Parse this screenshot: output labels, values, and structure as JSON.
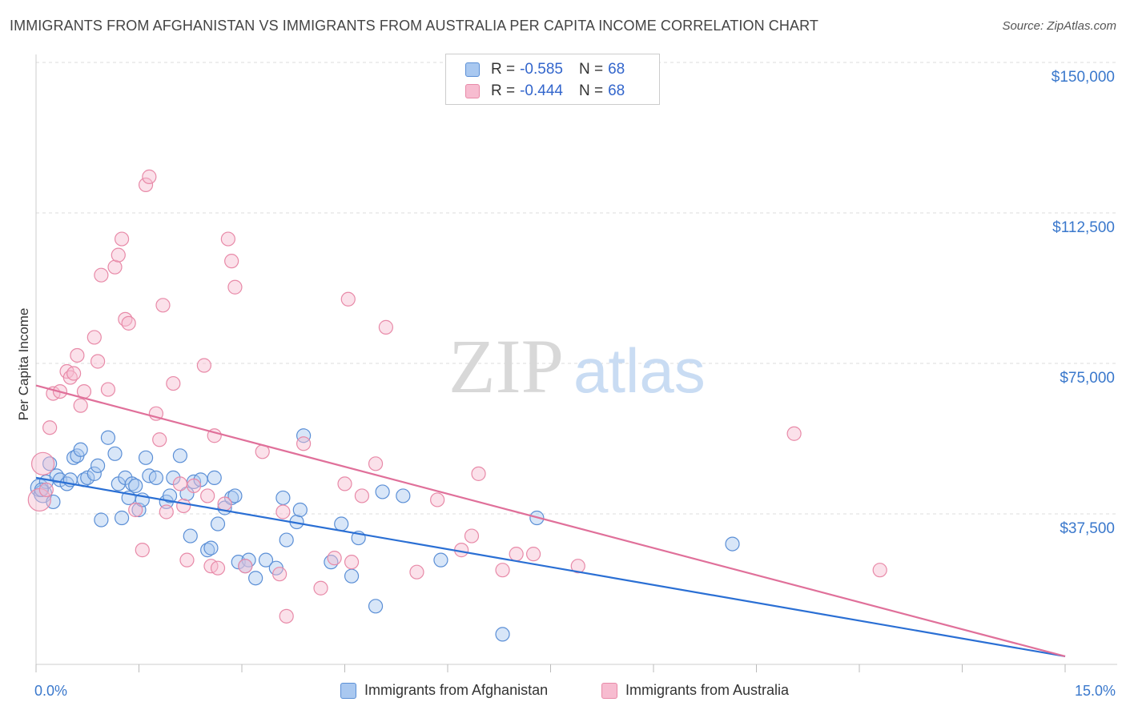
{
  "title": "IMMIGRANTS FROM AFGHANISTAN VS IMMIGRANTS FROM AUSTRALIA PER CAPITA INCOME CORRELATION CHART",
  "source": "Source: ZipAtlas.com",
  "watermark": {
    "zip": "ZIP",
    "atlas": "atlas"
  },
  "legend": {
    "rows": [
      {
        "r_label": "R =",
        "r_value": "-0.585",
        "n_label": "N =",
        "n_value": "68"
      },
      {
        "r_label": "R =",
        "r_value": "-0.444",
        "n_label": "N =",
        "n_value": "68"
      }
    ]
  },
  "bottom_legend": {
    "afghanistan": "Immigrants from Afghanistan",
    "australia": "Immigrants from Australia"
  },
  "colors": {
    "afghanistan_fill": "#a9c8f0",
    "afghanistan_stroke": "#5b8fd6",
    "afghanistan_line": "#2a6fd4",
    "australia_fill": "#f7bcd0",
    "australia_stroke": "#e88aa8",
    "australia_line": "#e0709a",
    "tick_label": "#3a78cc",
    "grid": "#dddddd"
  },
  "chart_data": {
    "type": "scatter",
    "xlabel": "",
    "ylabel": "Per Capita Income",
    "xlim": [
      0,
      15
    ],
    "ylim": [
      0,
      150000
    ],
    "x_tick_labels": [
      "0.0%",
      "15.0%"
    ],
    "y_ticks": [
      37500,
      75000,
      112500,
      150000
    ],
    "y_tick_labels": [
      "$37,500",
      "$75,000",
      "$112,500",
      "$150,000"
    ],
    "grid": true,
    "series": [
      {
        "name": "Immigrants from Afghanistan",
        "trend": {
          "x": [
            0,
            15
          ],
          "y": [
            46500,
            2000
          ]
        },
        "points": [
          [
            0.05,
            44000
          ],
          [
            0.1,
            42500
          ],
          [
            0.15,
            45500
          ],
          [
            0.2,
            50000
          ],
          [
            0.25,
            40500
          ],
          [
            0.3,
            47000
          ],
          [
            0.35,
            46000
          ],
          [
            0.45,
            45000
          ],
          [
            0.5,
            46000
          ],
          [
            0.55,
            51500
          ],
          [
            0.6,
            52000
          ],
          [
            0.65,
            53500
          ],
          [
            0.7,
            46000
          ],
          [
            0.75,
            46500
          ],
          [
            0.85,
            47500
          ],
          [
            0.9,
            49500
          ],
          [
            0.95,
            36000
          ],
          [
            1.05,
            56500
          ],
          [
            1.15,
            52500
          ],
          [
            1.2,
            45000
          ],
          [
            1.25,
            36500
          ],
          [
            1.3,
            46500
          ],
          [
            1.35,
            41500
          ],
          [
            1.4,
            45000
          ],
          [
            1.45,
            44500
          ],
          [
            1.5,
            38500
          ],
          [
            1.55,
            41000
          ],
          [
            1.6,
            51500
          ],
          [
            1.65,
            47000
          ],
          [
            1.75,
            46500
          ],
          [
            1.9,
            40500
          ],
          [
            1.95,
            42000
          ],
          [
            2.1,
            52000
          ],
          [
            2.2,
            42500
          ],
          [
            2.25,
            32000
          ],
          [
            2.3,
            45500
          ],
          [
            2.4,
            46000
          ],
          [
            2.5,
            28500
          ],
          [
            2.55,
            29000
          ],
          [
            2.6,
            46500
          ],
          [
            2.65,
            35000
          ],
          [
            2.75,
            39000
          ],
          [
            2.85,
            41500
          ],
          [
            2.9,
            42000
          ],
          [
            2.95,
            25500
          ],
          [
            3.1,
            26000
          ],
          [
            3.05,
            24500
          ],
          [
            3.2,
            21500
          ],
          [
            3.35,
            26000
          ],
          [
            3.5,
            24000
          ],
          [
            3.6,
            41500
          ],
          [
            3.65,
            31000
          ],
          [
            3.8,
            35500
          ],
          [
            3.85,
            38500
          ],
          [
            3.9,
            57000
          ],
          [
            4.3,
            25500
          ],
          [
            4.45,
            35000
          ],
          [
            4.6,
            22000
          ],
          [
            4.7,
            31500
          ],
          [
            4.95,
            14500
          ],
          [
            5.05,
            43000
          ],
          [
            5.35,
            42000
          ],
          [
            5.9,
            26000
          ],
          [
            6.8,
            7500
          ],
          [
            7.3,
            36500
          ],
          [
            10.15,
            30000
          ],
          [
            0.08,
            43500
          ],
          [
            2.0,
            46500
          ]
        ]
      },
      {
        "name": "Immigrants from Australia",
        "trend": {
          "x": [
            0,
            15
          ],
          "y": [
            69500,
            2000
          ]
        },
        "points": [
          [
            0.05,
            41000
          ],
          [
            0.1,
            50000
          ],
          [
            0.15,
            43500
          ],
          [
            0.2,
            59000
          ],
          [
            0.25,
            67500
          ],
          [
            0.35,
            68000
          ],
          [
            0.45,
            73000
          ],
          [
            0.5,
            71500
          ],
          [
            0.55,
            72500
          ],
          [
            0.6,
            77000
          ],
          [
            0.65,
            64500
          ],
          [
            0.7,
            68000
          ],
          [
            0.85,
            81500
          ],
          [
            0.9,
            75500
          ],
          [
            0.95,
            97000
          ],
          [
            1.05,
            68500
          ],
          [
            1.15,
            99000
          ],
          [
            1.2,
            102000
          ],
          [
            1.25,
            106000
          ],
          [
            1.3,
            86000
          ],
          [
            1.35,
            85000
          ],
          [
            1.45,
            38500
          ],
          [
            1.55,
            28500
          ],
          [
            1.6,
            119500
          ],
          [
            1.65,
            121500
          ],
          [
            1.75,
            62500
          ],
          [
            1.8,
            56000
          ],
          [
            1.85,
            89500
          ],
          [
            1.9,
            38000
          ],
          [
            2.0,
            70000
          ],
          [
            2.1,
            45000
          ],
          [
            2.15,
            39500
          ],
          [
            2.2,
            26000
          ],
          [
            2.3,
            44500
          ],
          [
            2.45,
            74500
          ],
          [
            2.5,
            42000
          ],
          [
            2.55,
            24500
          ],
          [
            2.6,
            57000
          ],
          [
            2.65,
            24000
          ],
          [
            2.75,
            40000
          ],
          [
            2.8,
            106000
          ],
          [
            2.85,
            100500
          ],
          [
            2.9,
            94000
          ],
          [
            3.05,
            24500
          ],
          [
            3.3,
            53000
          ],
          [
            3.55,
            22500
          ],
          [
            3.6,
            38000
          ],
          [
            3.65,
            12000
          ],
          [
            3.9,
            55000
          ],
          [
            4.15,
            19000
          ],
          [
            4.35,
            26500
          ],
          [
            4.5,
            45000
          ],
          [
            4.55,
            91000
          ],
          [
            4.6,
            25500
          ],
          [
            4.75,
            42000
          ],
          [
            4.95,
            50000
          ],
          [
            5.1,
            84000
          ],
          [
            5.55,
            23000
          ],
          [
            5.85,
            41000
          ],
          [
            6.2,
            28500
          ],
          [
            6.35,
            32000
          ],
          [
            6.45,
            47500
          ],
          [
            6.8,
            23500
          ],
          [
            7.0,
            27500
          ],
          [
            7.25,
            27500
          ],
          [
            7.9,
            24500
          ],
          [
            11.05,
            57500
          ],
          [
            12.3,
            23500
          ]
        ]
      }
    ]
  }
}
